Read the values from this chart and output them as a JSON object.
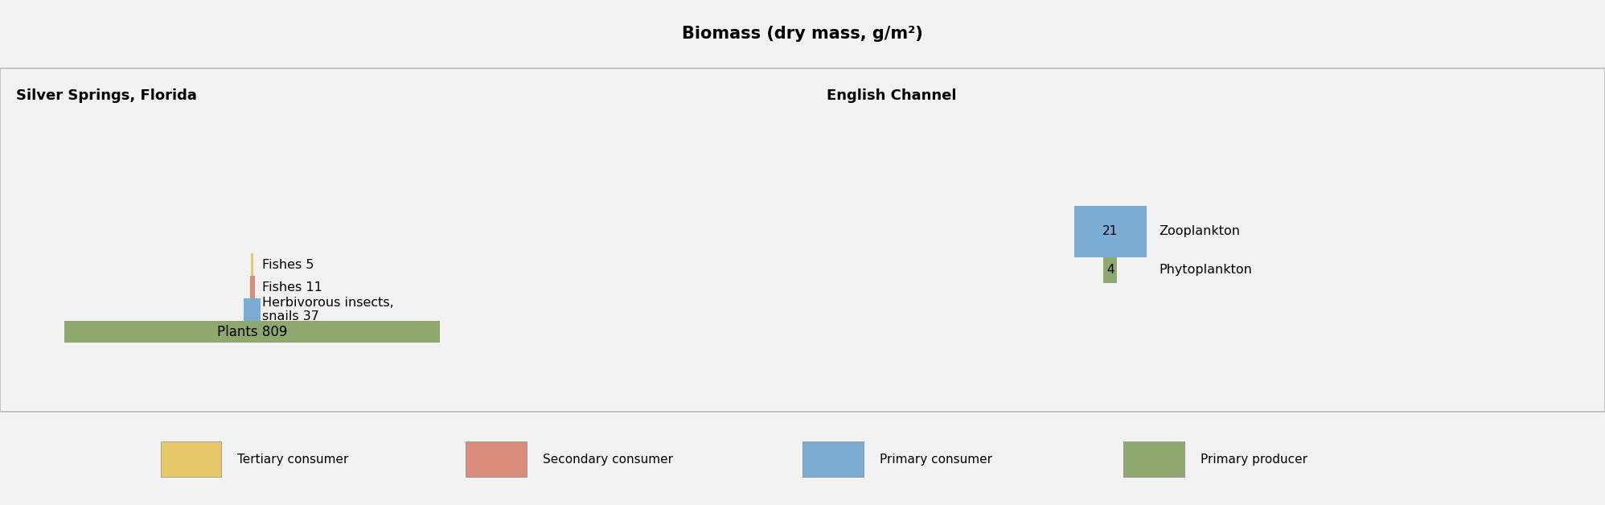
{
  "title": "Biomass (dry mass, g/m²)",
  "title_bg": "#b5cdd1",
  "panel_bg": "#ffffff",
  "outer_bg": "#f2f2f2",
  "border_color": "#bbbbbb",
  "left_title": "Silver Springs, Florida",
  "right_title": "English Channel",
  "left_bars": [
    {
      "label": "Plants 809",
      "value": 809,
      "color": "#8fa870",
      "inside_label": true,
      "multiline": false
    },
    {
      "label": "Herbivorous insects,\nsnails 37",
      "value": 37,
      "color": "#7badd4",
      "inside_label": false,
      "multiline": true
    },
    {
      "label": "Fishes 11",
      "value": 11,
      "color": "#d98c7a",
      "inside_label": false,
      "multiline": false
    },
    {
      "label": "Fishes 5",
      "value": 5,
      "color": "#e8c96a",
      "inside_label": false,
      "multiline": false
    }
  ],
  "right_bars": [
    {
      "label": "Phytoplankton",
      "value": 4,
      "label_value": "4",
      "color": "#8fa870"
    },
    {
      "label": "Zooplankton",
      "value": 21,
      "label_value": "21",
      "color": "#7badd4"
    }
  ],
  "legend": [
    {
      "label": "Tertiary consumer",
      "color": "#e8c96a"
    },
    {
      "label": "Secondary consumer",
      "color": "#d98c7a"
    },
    {
      "label": "Primary consumer",
      "color": "#7badd4"
    },
    {
      "label": "Primary producer",
      "color": "#8fa870"
    }
  ]
}
